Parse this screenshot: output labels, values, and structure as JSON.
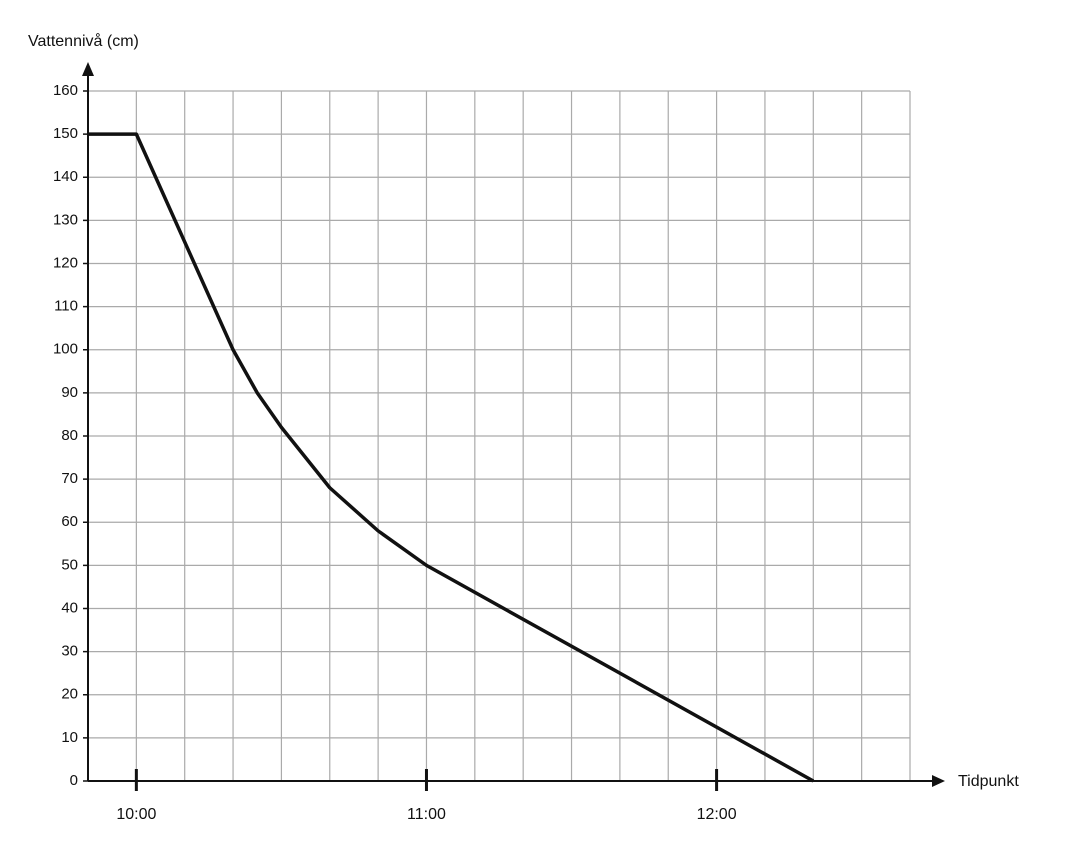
{
  "chart_data": {
    "type": "line",
    "y_label": "Vattennivå (cm)",
    "x_label": "Tidpunkt",
    "x": [
      590,
      600,
      620,
      625,
      630,
      640,
      650,
      660,
      740
    ],
    "series": [
      {
        "color": "#111111",
        "values": [
          150,
          150,
          100,
          90,
          82,
          68,
          58,
          50,
          0
        ]
      }
    ],
    "xlim": [
      590,
      760
    ],
    "xticks": [
      {
        "value": 600,
        "label": "10:00"
      },
      {
        "value": 660,
        "label": "11:00"
      },
      {
        "value": 720,
        "label": "12:00"
      }
    ],
    "xminor": [
      610,
      620,
      630,
      640,
      650,
      670,
      680,
      690,
      700,
      710,
      730,
      740,
      750,
      760
    ],
    "ylim": [
      0,
      160
    ],
    "yticks": [
      0,
      10,
      20,
      30,
      40,
      50,
      60,
      70,
      80,
      90,
      100,
      110,
      120,
      130,
      140,
      150,
      160
    ],
    "grid": true
  }
}
